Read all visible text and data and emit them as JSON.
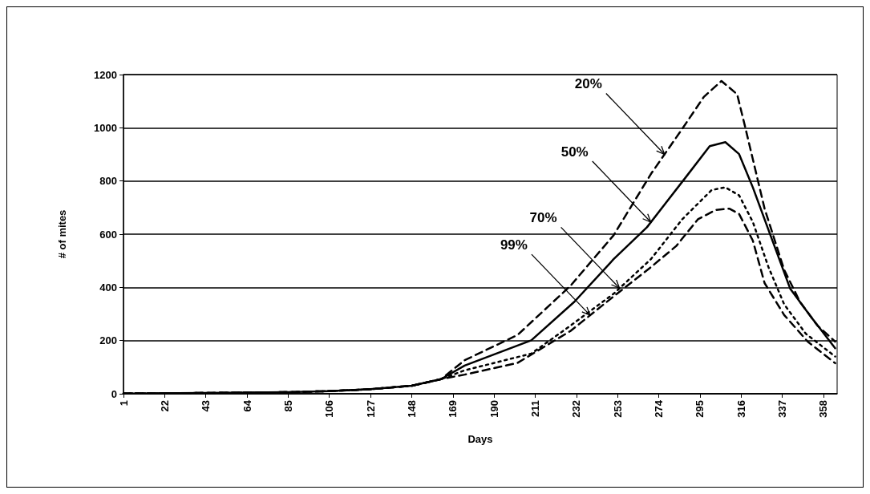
{
  "chart_data": {
    "type": "line",
    "xlabel": "Days",
    "ylabel": "# of mites",
    "xlim": [
      1,
      365
    ],
    "xticks": [
      1,
      22,
      43,
      64,
      85,
      106,
      127,
      148,
      169,
      190,
      211,
      232,
      253,
      274,
      295,
      316,
      337,
      358
    ],
    "ylim": [
      0,
      1200
    ],
    "yticks": [
      0,
      200,
      400,
      600,
      800,
      1000,
      1200
    ],
    "grid": "y",
    "marker": "none",
    "series": [
      {
        "color": "#000000",
        "line_style": "dashed",
        "x": [
          1,
          43,
          85,
          106,
          127,
          148,
          163,
          175,
          202,
          229,
          251,
          270,
          286,
          297,
          306,
          314,
          318,
          328,
          338,
          346,
          355,
          364
        ],
        "values": [
          1,
          3,
          6,
          10,
          17,
          30,
          55,
          126,
          221,
          406,
          596,
          826,
          996,
          1116,
          1176,
          1126,
          1006,
          696,
          466,
          346,
          256,
          196
        ]
      },
      {
        "color": "#000000",
        "line_style": "solid",
        "x": [
          1,
          43,
          85,
          106,
          127,
          148,
          163,
          175,
          209,
          231,
          251,
          268,
          288,
          300,
          308,
          315,
          322,
          331,
          341,
          352,
          364
        ],
        "values": [
          1,
          3,
          6,
          10,
          17,
          30,
          55,
          106,
          201,
          346,
          506,
          626,
          816,
          931,
          946,
          901,
          776,
          596,
          396,
          286,
          171
        ]
      },
      {
        "color": "#000000",
        "line_style": "dotted",
        "x": [
          1,
          43,
          85,
          106,
          127,
          148,
          163,
          175,
          209,
          229,
          251,
          270,
          286,
          301,
          308,
          315,
          322,
          330,
          338,
          349,
          364
        ],
        "values": [
          1,
          3,
          6,
          10,
          17,
          30,
          55,
          88,
          151,
          256,
          376,
          506,
          656,
          766,
          776,
          746,
          646,
          476,
          336,
          226,
          140
        ]
      },
      {
        "color": "#000000",
        "line_style": "dashed",
        "x": [
          1,
          43,
          85,
          106,
          127,
          148,
          163,
          175,
          202,
          229,
          251,
          270,
          283,
          294,
          303,
          310,
          315,
          322,
          328,
          338,
          350,
          364
        ],
        "values": [
          1,
          3,
          6,
          10,
          17,
          30,
          55,
          72,
          116,
          236,
          366,
          476,
          556,
          656,
          691,
          696,
          676,
          576,
          416,
          296,
          196,
          115
        ]
      }
    ],
    "annotations": [
      {
        "text": "20%",
        "x": 277,
        "y": 900
      },
      {
        "text": "50%",
        "x": 270,
        "y": 645
      },
      {
        "text": "70%",
        "x": 254,
        "y": 397
      },
      {
        "text": "99%",
        "x": 239,
        "y": 295
      }
    ]
  }
}
